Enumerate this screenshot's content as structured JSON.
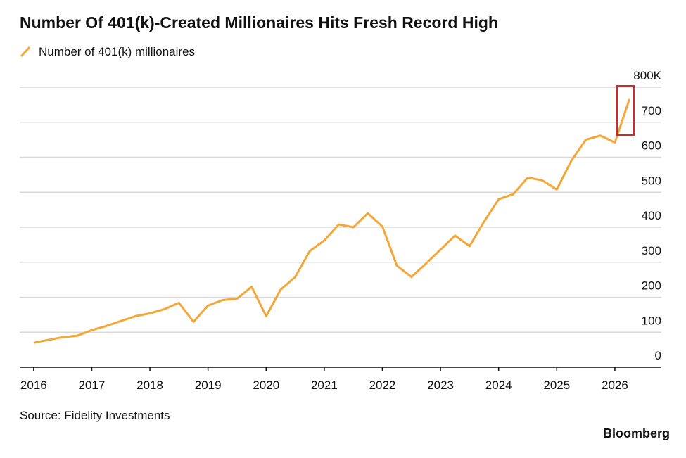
{
  "chart_data": {
    "type": "line",
    "title": "Number Of 401(k)-Created Millionaires Hits Fresh Record High",
    "source": "Source: Fidelity Investments",
    "brand": "Bloomberg",
    "x": [
      2016,
      2016.25,
      2016.5,
      2016.75,
      2017,
      2017.25,
      2017.5,
      2017.75,
      2018,
      2018.25,
      2018.5,
      2018.75,
      2019,
      2019.25,
      2019.5,
      2019.75,
      2020,
      2020.25,
      2020.5,
      2020.75,
      2021,
      2021.25,
      2021.5,
      2021.75,
      2022,
      2022.25,
      2022.5,
      2022.75,
      2023,
      2023.25,
      2023.5,
      2023.75,
      2024,
      2024.25,
      2024.5,
      2024.75,
      2025,
      2025.25,
      2025.5,
      2025.75,
      2026,
      2026.25
    ],
    "series": [
      {
        "name": "Number of 401(k) millionaires",
        "color": "#f4a636",
        "values": [
          70,
          78,
          86,
          90,
          106,
          118,
          132,
          146,
          154,
          166,
          184,
          130,
          176,
          192,
          196,
          230,
          146,
          222,
          258,
          332,
          362,
          408,
          400,
          440,
          402,
          290,
          258,
          296,
          336,
          376,
          346,
          416,
          480,
          494,
          542,
          534,
          508,
          590,
          650,
          662,
          642,
          766
        ]
      }
    ],
    "xlim": [
      2015.76,
      2026.8
    ],
    "xticks": [
      2016,
      2017,
      2018,
      2019,
      2020,
      2021,
      2022,
      2023,
      2024,
      2025,
      2026
    ],
    "ylim": [
      0,
      800
    ],
    "yticks": [
      0,
      100,
      200,
      300,
      400,
      500,
      600,
      700,
      {
        "value": 800,
        "label": "800K"
      }
    ],
    "grid": true
  }
}
